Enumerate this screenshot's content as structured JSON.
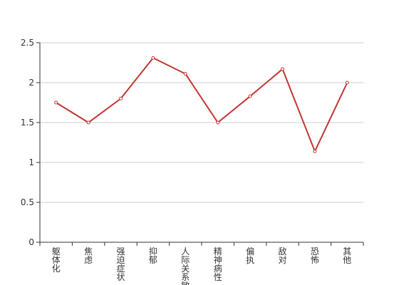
{
  "chart_data": {
    "type": "line",
    "categories": [
      "躯体化",
      "焦虑",
      "强迫症状",
      "抑郁",
      "人际关系敏感",
      "精神病性",
      "偏执",
      "敌对",
      "恐怖",
      "其他"
    ],
    "values": [
      1.75,
      1.5,
      1.8,
      2.31,
      2.11,
      1.5,
      1.83,
      2.17,
      1.14,
      2.0
    ],
    "color": "#c23531",
    "ylim": [
      0,
      2.5
    ],
    "yticks": [
      0,
      0.5,
      1,
      1.5,
      2,
      2.5
    ],
    "grid": true
  }
}
